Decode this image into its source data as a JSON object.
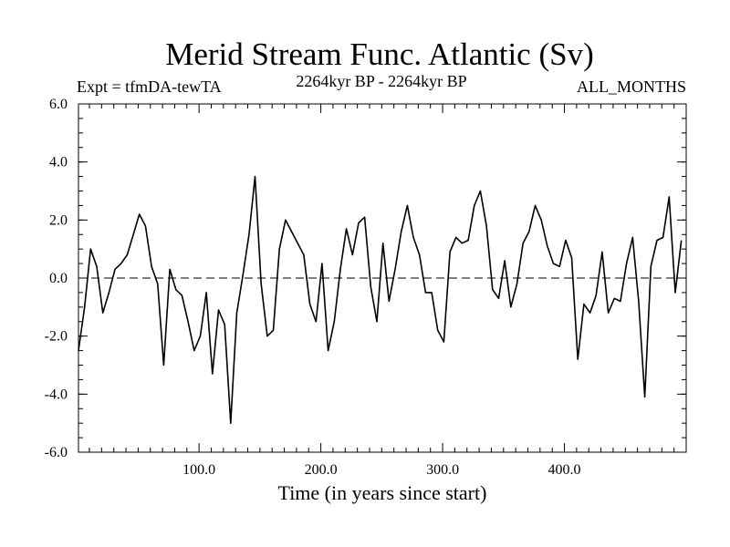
{
  "chart_data": {
    "type": "line",
    "title": "Merid Stream Func. Atlantic (Sv)",
    "subtitle_left": "Expt = tfmDA-tewTA",
    "subtitle_center": "2264kyr BP - 2264kyr BP",
    "subtitle_right": "ALL_MONTHS",
    "xlabel": "Time (in years since start)",
    "ylabel": "",
    "xlim": [
      1,
      500
    ],
    "ylim": [
      -6,
      6
    ],
    "x_ticks": [
      100,
      200,
      300,
      400
    ],
    "x_tick_labels": [
      "100.0",
      "200.0",
      "300.0",
      "400.0"
    ],
    "y_ticks": [
      -6,
      -4,
      -2,
      0,
      2,
      4,
      6
    ],
    "y_tick_labels": [
      "-6.0",
      "-4.0",
      "-2.0",
      "0.0",
      "2.0",
      "4.0",
      "6.0"
    ],
    "reference_line": 0,
    "series": [
      {
        "name": "Merid Stream Func. Atlantic",
        "x_start": 1,
        "x_step": 5,
        "values": [
          -2.5,
          -1.0,
          1.0,
          0.4,
          -1.2,
          -0.5,
          0.3,
          0.5,
          0.8,
          1.5,
          2.2,
          1.8,
          0.4,
          -0.2,
          -3.0,
          0.3,
          -0.4,
          -0.6,
          -1.5,
          -2.5,
          -2.0,
          -0.5,
          -3.3,
          -1.1,
          -1.6,
          -5.0,
          -1.2,
          0.1,
          1.5,
          3.5,
          -0.2,
          -2.0,
          -1.8,
          1.0,
          2.0,
          1.6,
          1.2,
          0.8,
          -0.9,
          -1.5,
          0.5,
          -2.5,
          -1.5,
          0.3,
          1.7,
          0.8,
          1.9,
          2.1,
          -0.3,
          -1.5,
          1.2,
          -0.8,
          0.3,
          1.6,
          2.5,
          1.4,
          0.8,
          -0.5,
          -0.5,
          -1.8,
          -2.2,
          0.9,
          1.4,
          1.2,
          1.3,
          2.5,
          3.0,
          1.8,
          -0.4,
          -0.7,
          0.6,
          -1.0,
          -0.2,
          1.2,
          1.6,
          2.5,
          2.0,
          1.1,
          0.5,
          0.4,
          1.3,
          0.7,
          -2.8,
          -0.9,
          -1.2,
          -0.6,
          0.9,
          -1.2,
          -0.7,
          -0.8,
          0.5,
          1.4,
          -0.8,
          -4.1,
          0.4,
          1.3,
          1.4,
          2.8,
          -0.5,
          1.3
        ]
      }
    ]
  }
}
